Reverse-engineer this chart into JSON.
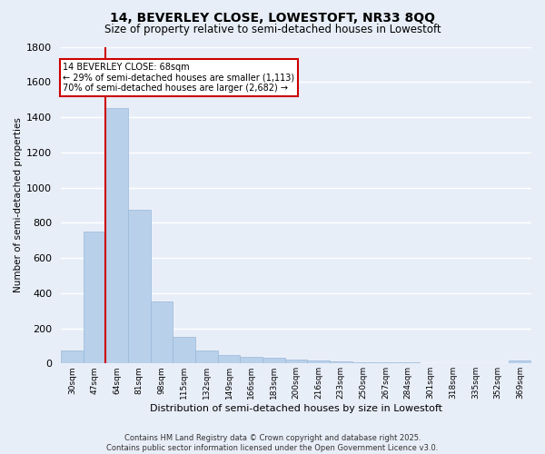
{
  "title": "14, BEVERLEY CLOSE, LOWESTOFT, NR33 8QQ",
  "subtitle": "Size of property relative to semi-detached houses in Lowestoft",
  "xlabel": "Distribution of semi-detached houses by size in Lowestoft",
  "ylabel": "Number of semi-detached properties",
  "categories": [
    "30sqm",
    "47sqm",
    "64sqm",
    "81sqm",
    "98sqm",
    "115sqm",
    "132sqm",
    "149sqm",
    "166sqm",
    "183sqm",
    "200sqm",
    "216sqm",
    "233sqm",
    "250sqm",
    "267sqm",
    "284sqm",
    "301sqm",
    "318sqm",
    "335sqm",
    "352sqm",
    "369sqm"
  ],
  "values": [
    75,
    750,
    1450,
    875,
    350,
    150,
    75,
    50,
    40,
    30,
    20,
    15,
    10,
    8,
    5,
    5,
    3,
    3,
    3,
    2,
    15
  ],
  "bar_color": "#b8d0ea",
  "bar_edge_color": "#9ab8d8",
  "red_line_index": 2,
  "annotation_title": "14 BEVERLEY CLOSE: 68sqm",
  "annotation_line1": "← 29% of semi-detached houses are smaller (1,113)",
  "annotation_line2": "70% of semi-detached houses are larger (2,682) →",
  "annotation_box_color": "#ffffff",
  "annotation_box_edge_color": "#cc0000",
  "red_line_color": "#cc0000",
  "background_color": "#e8eef8",
  "grid_color": "#ffffff",
  "ylim": [
    0,
    1800
  ],
  "yticks": [
    0,
    200,
    400,
    600,
    800,
    1000,
    1200,
    1400,
    1600,
    1800
  ],
  "footnote1": "Contains HM Land Registry data © Crown copyright and database right 2025.",
  "footnote2": "Contains public sector information licensed under the Open Government Licence v3.0."
}
